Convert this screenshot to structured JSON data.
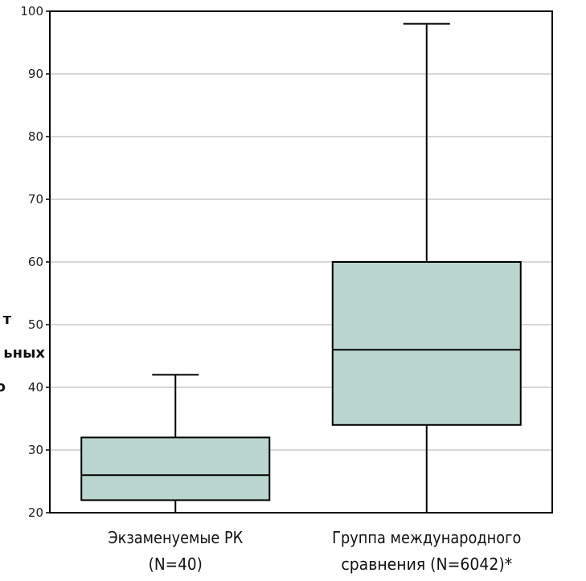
{
  "chart_data": {
    "type": "box",
    "ylim": [
      20,
      100
    ],
    "yticks": [
      20,
      30,
      40,
      50,
      60,
      70,
      80,
      90,
      100
    ],
    "grid": true,
    "ylabel_fragments": [
      "т",
      "ьных",
      "о"
    ],
    "colors": {
      "box_fill": "#b9d5cd",
      "stroke": "#000000",
      "grid": "#c8c8c8"
    },
    "series": [
      {
        "category_lines": [
          "Экзаменуемые РК",
          "(N=40)"
        ],
        "whisker_low": 20,
        "q1": 22,
        "median": 26,
        "q3": 32,
        "whisker_high": 42
      },
      {
        "category_lines": [
          "Группа международного",
          "сравнения (N=6042)*"
        ],
        "whisker_low": 20,
        "q1": 34,
        "median": 46,
        "q3": 60,
        "whisker_high": 98
      }
    ]
  }
}
